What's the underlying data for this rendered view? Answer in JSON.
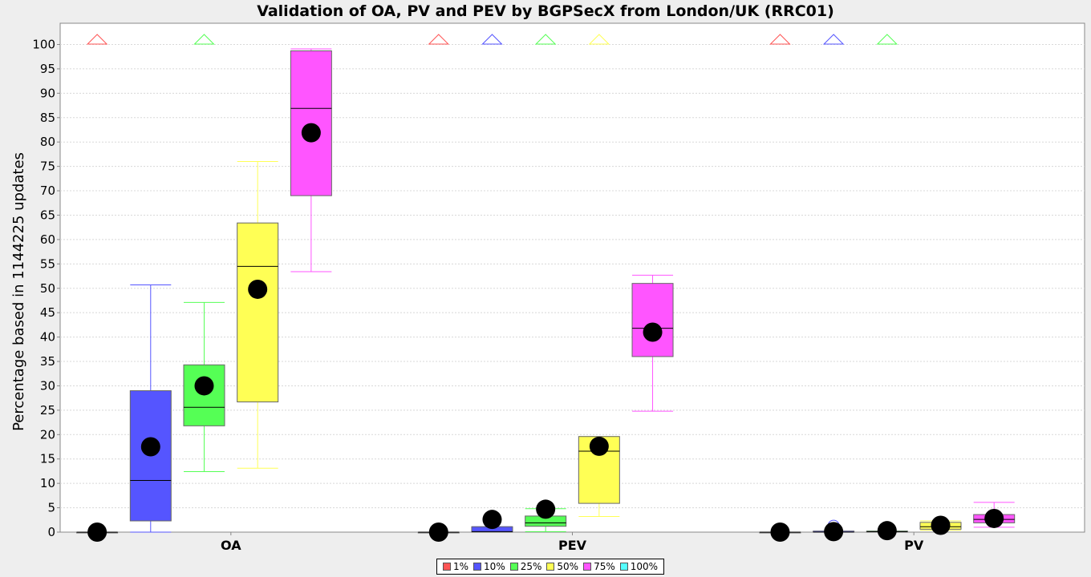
{
  "chart_data": {
    "type": "box",
    "title": "Validation of OA, PV and PEV by BGPSecX from London/UK (RRC01)",
    "xlabel": "",
    "ylabel": "Percentage based in 1144225 updates",
    "ylim": [
      0,
      100
    ],
    "y_ticks": [
      0,
      5,
      10,
      15,
      20,
      25,
      30,
      35,
      40,
      45,
      50,
      55,
      60,
      65,
      70,
      75,
      80,
      85,
      90,
      95,
      100
    ],
    "categories": [
      "OA",
      "PEV",
      "PV"
    ],
    "grid": true,
    "legend_position": "bottom",
    "series": [
      {
        "name": "1%",
        "color": "#ff5555",
        "boxes": [
          {
            "whisker_low": 0,
            "q1": 0,
            "median": 0,
            "q3": 0,
            "whisker_high": 0,
            "mean": 0,
            "outlier_high": true
          },
          {
            "whisker_low": 0,
            "q1": 0,
            "median": 0,
            "q3": 0,
            "whisker_high": 0,
            "mean": 0,
            "outlier_high": true
          },
          {
            "whisker_low": 0,
            "q1": 0,
            "median": 0,
            "q3": 0,
            "whisker_high": 0,
            "mean": 0,
            "outlier_high": true
          }
        ]
      },
      {
        "name": "10%",
        "color": "#5555ff",
        "boxes": [
          {
            "whisker_low": 0,
            "q1": 2.3,
            "median": 10.6,
            "q3": 29,
            "whisker_high": 50.7,
            "mean": 17.5,
            "outlier_high": false
          },
          {
            "whisker_low": 0,
            "q1": 0,
            "median": 0.1,
            "q3": 1.1,
            "whisker_high": 1.1,
            "mean": 2.6,
            "outlier_high": true
          },
          {
            "whisker_low": 0,
            "q1": 0,
            "median": 0,
            "q3": 0.2,
            "whisker_high": 0.2,
            "mean": 0.1,
            "outlier_high": true,
            "outlier_points": [
              1.3
            ]
          }
        ]
      },
      {
        "name": "25%",
        "color": "#55ff55",
        "boxes": [
          {
            "whisker_low": 12.4,
            "q1": 21.8,
            "median": 25.6,
            "q3": 34.3,
            "whisker_high": 47.1,
            "mean": 30,
            "outlier_high": true
          },
          {
            "whisker_low": 0.1,
            "q1": 1.2,
            "median": 1.9,
            "q3": 3.3,
            "whisker_high": 4.8,
            "mean": 4.7,
            "outlier_high": true
          },
          {
            "whisker_low": 0,
            "q1": 0,
            "median": 0.1,
            "q3": 0.2,
            "whisker_high": 0.2,
            "mean": 0.3,
            "outlier_high": true
          }
        ]
      },
      {
        "name": "50%",
        "color": "#ffff55",
        "boxes": [
          {
            "whisker_low": 13.1,
            "q1": 26.7,
            "median": 54.5,
            "q3": 63.4,
            "whisker_high": 76,
            "mean": 49.8,
            "outlier_high": false
          },
          {
            "whisker_low": 3.2,
            "q1": 5.9,
            "median": 16.6,
            "q3": 19.6,
            "whisker_high": 19.6,
            "mean": 17.6,
            "outlier_high": true
          },
          {
            "whisker_low": 0.4,
            "q1": 0.6,
            "median": 1.1,
            "q3": 2,
            "whisker_high": 2.3,
            "mean": 1.4,
            "outlier_high": false
          }
        ]
      },
      {
        "name": "75%",
        "color": "#ff55ff",
        "boxes": [
          {
            "whisker_low": 53.4,
            "q1": 69,
            "median": 86.9,
            "q3": 98.7,
            "whisker_high": 99.1,
            "mean": 81.9,
            "outlier_high": false
          },
          {
            "whisker_low": 24.8,
            "q1": 36,
            "median": 41.8,
            "q3": 51,
            "whisker_high": 52.7,
            "mean": 41,
            "outlier_high": false
          },
          {
            "whisker_low": 1,
            "q1": 1.9,
            "median": 2.6,
            "q3": 3.6,
            "whisker_high": 6.1,
            "mean": 2.8,
            "outlier_high": false
          }
        ]
      },
      {
        "name": "100%",
        "color": "#55ffff",
        "boxes": []
      }
    ]
  }
}
